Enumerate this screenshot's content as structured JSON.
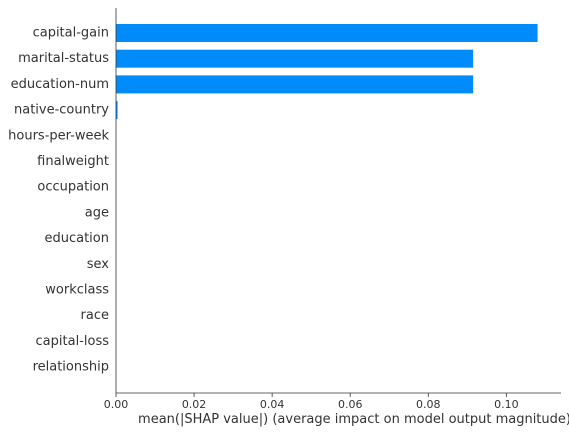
{
  "chart_data": {
    "type": "bar",
    "orientation": "horizontal",
    "title": "",
    "xlabel": "mean(|SHAP value|) (average impact on model output magnitude)",
    "ylabel": "",
    "xlim": [
      0,
      0.114
    ],
    "x_ticks": [
      0.0,
      0.02,
      0.04,
      0.06,
      0.08,
      0.1
    ],
    "x_tick_labels": [
      "0.00",
      "0.02",
      "0.04",
      "0.06",
      "0.08",
      "0.10"
    ],
    "grid": false,
    "bar_color": "#008bfb",
    "categories": [
      "capital-gain",
      "marital-status",
      "education-num",
      "native-country",
      "hours-per-week",
      "finalweight",
      "occupation",
      "age",
      "education",
      "sex",
      "workclass",
      "race",
      "capital-loss",
      "relationship"
    ],
    "values": [
      0.108,
      0.0915,
      0.0915,
      0.0004,
      0.0,
      0.0,
      0.0,
      0.0,
      0.0,
      0.0,
      0.0,
      0.0,
      0.0,
      0.0
    ]
  }
}
